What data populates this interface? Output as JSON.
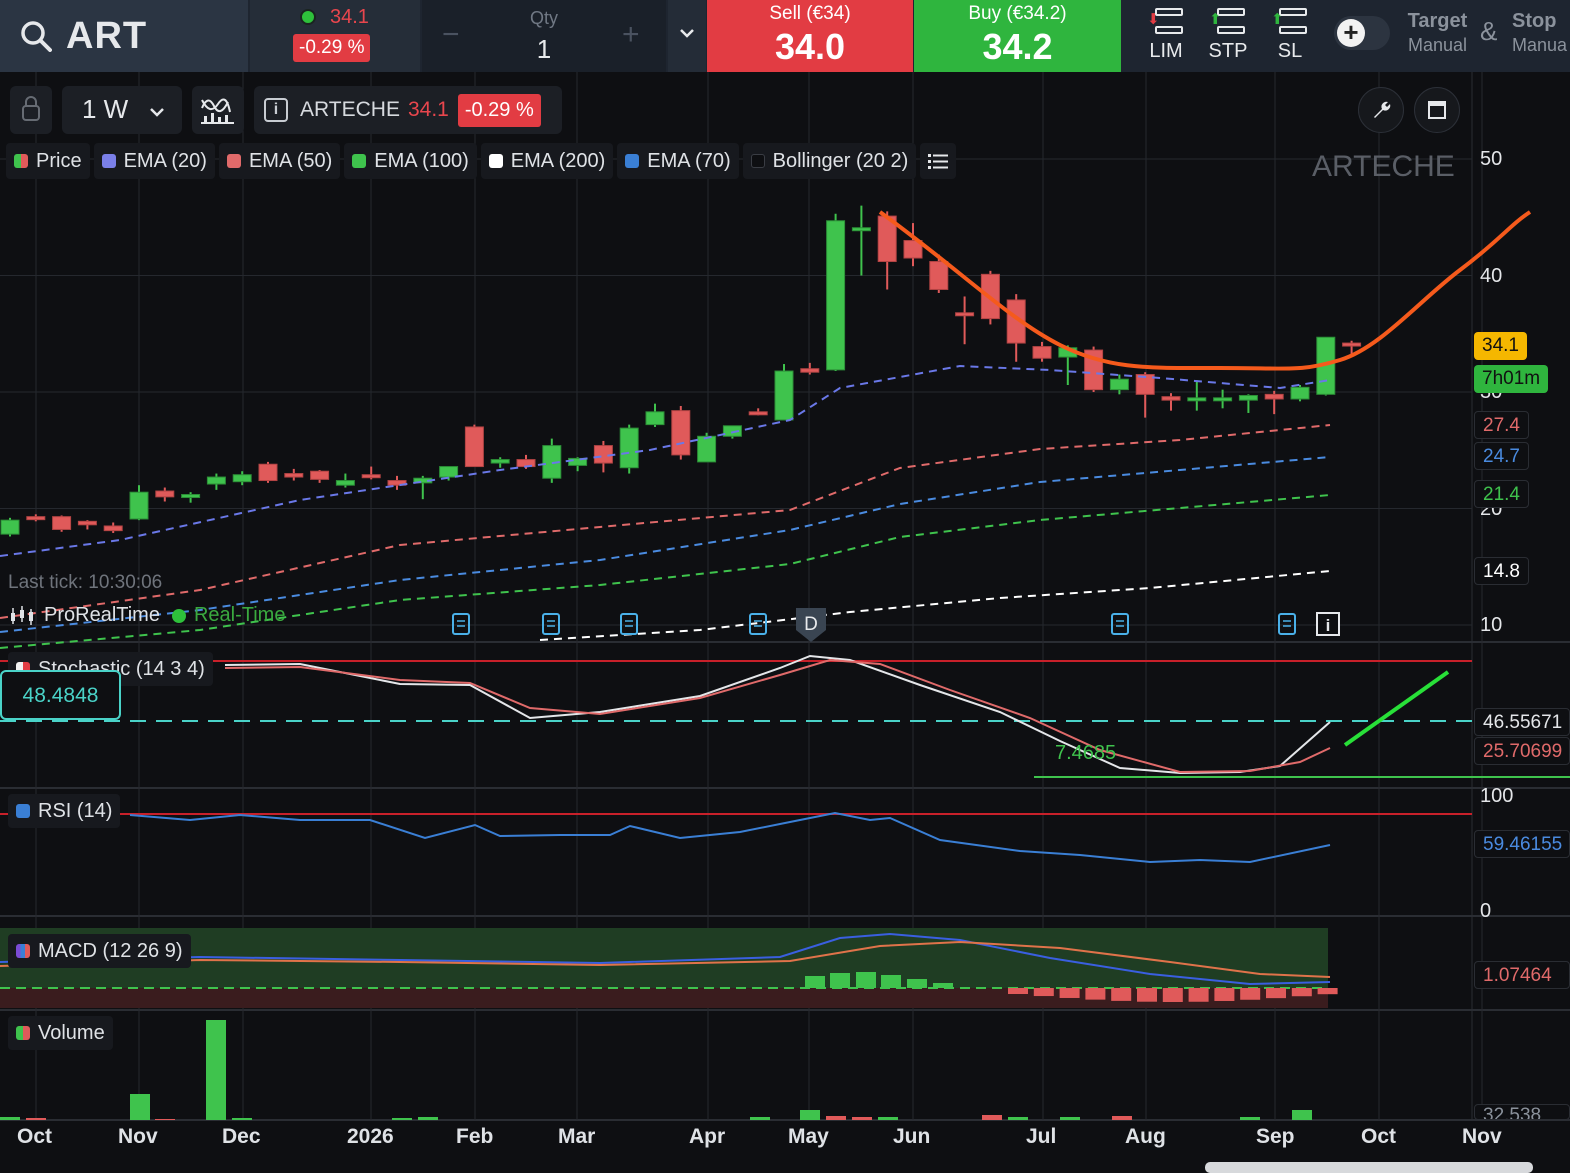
{
  "instrument": {
    "symbol": "ART",
    "name": "ARTECHE",
    "last_price": "34.1",
    "change_pct": "-0.29 %"
  },
  "order": {
    "qty_label": "Qty",
    "qty_value": "1",
    "sell_label": "Sell (€34)",
    "sell_value": "34.0",
    "buy_label": "Buy (€34.2)",
    "buy_value": "34.2",
    "types": [
      "LIM",
      "STP",
      "SL"
    ],
    "target_label": "Target",
    "target_mode": "Manual",
    "amp": "&",
    "stop_label": "Stop",
    "stop_mode": "Manua"
  },
  "chart_toolbar": {
    "timeframe": "1 W"
  },
  "legend": [
    {
      "label": "Price",
      "color": "#e05a5a"
    },
    {
      "label": "EMA (20)",
      "color": "#7a7fe8"
    },
    {
      "label": "EMA (50)",
      "color": "#e06a6a"
    },
    {
      "label": "EMA (100)",
      "color": "#3fc34d"
    },
    {
      "label": "EMA (200)",
      "color": "#ffffff"
    },
    {
      "label": "EMA (70)",
      "color": "#3a7fd5"
    },
    {
      "label": "Bollinger (20 2)",
      "color": "#17191e"
    }
  ],
  "watermark": "ARTECHE",
  "last_tick": "Last tick: 10:30:06",
  "provider": "ProRealTime",
  "feed": "Real-Time",
  "event_marker": "D",
  "price_axis": [
    "50",
    "40",
    "30",
    "20",
    "10"
  ],
  "price_tags": [
    {
      "value": "34.1",
      "color": "#f5b700",
      "text_color": "#111111"
    },
    {
      "value": "7h01m",
      "color": "#2fb53e",
      "text_color": "#111111"
    },
    {
      "value": "27.4",
      "color": "#0e0f12",
      "text_color": "#e06a6a"
    },
    {
      "value": "24.7",
      "color": "#0e0f12",
      "text_color": "#4a8be0"
    },
    {
      "value": "21.4",
      "color": "#0e0f12",
      "text_color": "#3fc34d"
    },
    {
      "value": "14.8",
      "color": "#0e0f12",
      "text_color": "#ffffff"
    }
  ],
  "stochastic": {
    "label": "Stochastic (14 3 4)",
    "box_value": "48.4848",
    "low_label": "7.4685",
    "tag_k": "46.55671",
    "tag_d": "25.70699"
  },
  "rsi": {
    "label": "RSI (14)",
    "axis_top": "100",
    "axis_bottom": "0",
    "tag": "59.46155"
  },
  "macd": {
    "label": "MACD (12 26 9)",
    "tag": "1.07464"
  },
  "volume": {
    "label": "Volume",
    "tag": "32,538"
  },
  "x_axis": [
    "Oct",
    "Nov",
    "Dec",
    "2026",
    "Feb",
    "Mar",
    "Apr",
    "May",
    "Jun",
    "Jul",
    "Aug",
    "Sep",
    "Oct",
    "Nov"
  ],
  "chart_data": {
    "type": "candlestick",
    "interval": "1 W",
    "ylim": [
      10,
      52
    ],
    "candles": [
      {
        "o": 17.8,
        "h": 19.2,
        "l": 17.6,
        "c": 19.0
      },
      {
        "o": 19.3,
        "h": 19.5,
        "l": 18.9,
        "c": 19.1
      },
      {
        "o": 19.3,
        "h": 19.4,
        "l": 18.0,
        "c": 18.2
      },
      {
        "o": 18.9,
        "h": 19.0,
        "l": 18.2,
        "c": 18.6
      },
      {
        "o": 18.5,
        "h": 18.8,
        "l": 17.9,
        "c": 18.1
      },
      {
        "o": 19.1,
        "h": 22.0,
        "l": 19.0,
        "c": 21.4
      },
      {
        "o": 21.5,
        "h": 21.8,
        "l": 20.6,
        "c": 21.0
      },
      {
        "o": 21.0,
        "h": 21.4,
        "l": 20.5,
        "c": 21.2
      },
      {
        "o": 22.1,
        "h": 23.0,
        "l": 21.6,
        "c": 22.7
      },
      {
        "o": 22.3,
        "h": 23.2,
        "l": 22.0,
        "c": 22.9
      },
      {
        "o": 23.8,
        "h": 24.0,
        "l": 22.2,
        "c": 22.4
      },
      {
        "o": 23.0,
        "h": 23.4,
        "l": 22.4,
        "c": 22.7
      },
      {
        "o": 23.2,
        "h": 23.3,
        "l": 22.2,
        "c": 22.5
      },
      {
        "o": 22.0,
        "h": 23.0,
        "l": 21.8,
        "c": 22.4
      },
      {
        "o": 22.9,
        "h": 23.6,
        "l": 22.5,
        "c": 22.7
      },
      {
        "o": 22.4,
        "h": 22.8,
        "l": 21.6,
        "c": 22.0
      },
      {
        "o": 22.2,
        "h": 22.8,
        "l": 20.8,
        "c": 22.6
      },
      {
        "o": 22.7,
        "h": 23.6,
        "l": 22.4,
        "c": 23.6
      },
      {
        "o": 27.0,
        "h": 27.2,
        "l": 23.6,
        "c": 23.6
      },
      {
        "o": 23.9,
        "h": 24.4,
        "l": 23.5,
        "c": 24.2
      },
      {
        "o": 24.2,
        "h": 24.6,
        "l": 23.4,
        "c": 23.6
      },
      {
        "o": 22.6,
        "h": 26.0,
        "l": 22.2,
        "c": 25.4
      },
      {
        "o": 23.7,
        "h": 24.4,
        "l": 23.2,
        "c": 24.3
      },
      {
        "o": 25.4,
        "h": 25.8,
        "l": 23.1,
        "c": 23.9
      },
      {
        "o": 23.5,
        "h": 27.2,
        "l": 23.0,
        "c": 26.9
      },
      {
        "o": 27.2,
        "h": 29.0,
        "l": 27.0,
        "c": 28.3
      },
      {
        "o": 28.4,
        "h": 28.8,
        "l": 24.2,
        "c": 24.6
      },
      {
        "o": 24.0,
        "h": 26.5,
        "l": 24.0,
        "c": 26.2
      },
      {
        "o": 26.2,
        "h": 27.0,
        "l": 26.0,
        "c": 27.1
      },
      {
        "o": 28.3,
        "h": 28.6,
        "l": 28.0,
        "c": 28.2
      },
      {
        "o": 27.6,
        "h": 32.4,
        "l": 27.6,
        "c": 31.8
      },
      {
        "o": 32.0,
        "h": 32.5,
        "l": 31.5,
        "c": 31.7
      },
      {
        "o": 31.9,
        "h": 45.3,
        "l": 31.8,
        "c": 44.7
      },
      {
        "o": 44.0,
        "h": 46.0,
        "l": 40.0,
        "c": 44.1
      },
      {
        "o": 45.1,
        "h": 45.5,
        "l": 38.8,
        "c": 41.2
      },
      {
        "o": 43.0,
        "h": 44.5,
        "l": 40.8,
        "c": 41.5
      },
      {
        "o": 41.2,
        "h": 41.8,
        "l": 38.5,
        "c": 38.8
      },
      {
        "o": 36.8,
        "h": 38.2,
        "l": 34.1,
        "c": 36.6
      },
      {
        "o": 40.1,
        "h": 40.4,
        "l": 35.8,
        "c": 36.3
      },
      {
        "o": 37.9,
        "h": 38.4,
        "l": 32.6,
        "c": 34.2
      },
      {
        "o": 33.9,
        "h": 34.3,
        "l": 32.6,
        "c": 32.9
      },
      {
        "o": 33.0,
        "h": 34.0,
        "l": 30.6,
        "c": 33.8
      },
      {
        "o": 33.6,
        "h": 33.9,
        "l": 30.0,
        "c": 30.2
      },
      {
        "o": 30.2,
        "h": 31.5,
        "l": 29.8,
        "c": 31.1
      },
      {
        "o": 31.5,
        "h": 31.7,
        "l": 27.8,
        "c": 29.8
      },
      {
        "o": 29.6,
        "h": 29.9,
        "l": 28.4,
        "c": 29.3
      },
      {
        "o": 29.5,
        "h": 31.0,
        "l": 28.4,
        "c": 29.5
      },
      {
        "o": 29.3,
        "h": 30.2,
        "l": 28.6,
        "c": 29.5
      },
      {
        "o": 29.3,
        "h": 29.8,
        "l": 28.2,
        "c": 29.7
      },
      {
        "o": 29.8,
        "h": 30.1,
        "l": 28.1,
        "c": 29.4
      },
      {
        "o": 29.4,
        "h": 30.6,
        "l": 29.2,
        "c": 30.4
      },
      {
        "o": 29.8,
        "h": 34.7,
        "l": 29.7,
        "c": 34.7
      },
      {
        "o": 34.2,
        "h": 34.4,
        "l": 33.0,
        "c": 34.1
      }
    ],
    "ema_last": {
      "EMA (20)": 31.6,
      "EMA (50)": 27.4,
      "EMA (70)": 24.7,
      "EMA (100)": 21.4,
      "EMA (200)": 14.8
    },
    "stochastic_range": [
      0,
      100
    ],
    "rsi_range": [
      0,
      100
    ]
  }
}
